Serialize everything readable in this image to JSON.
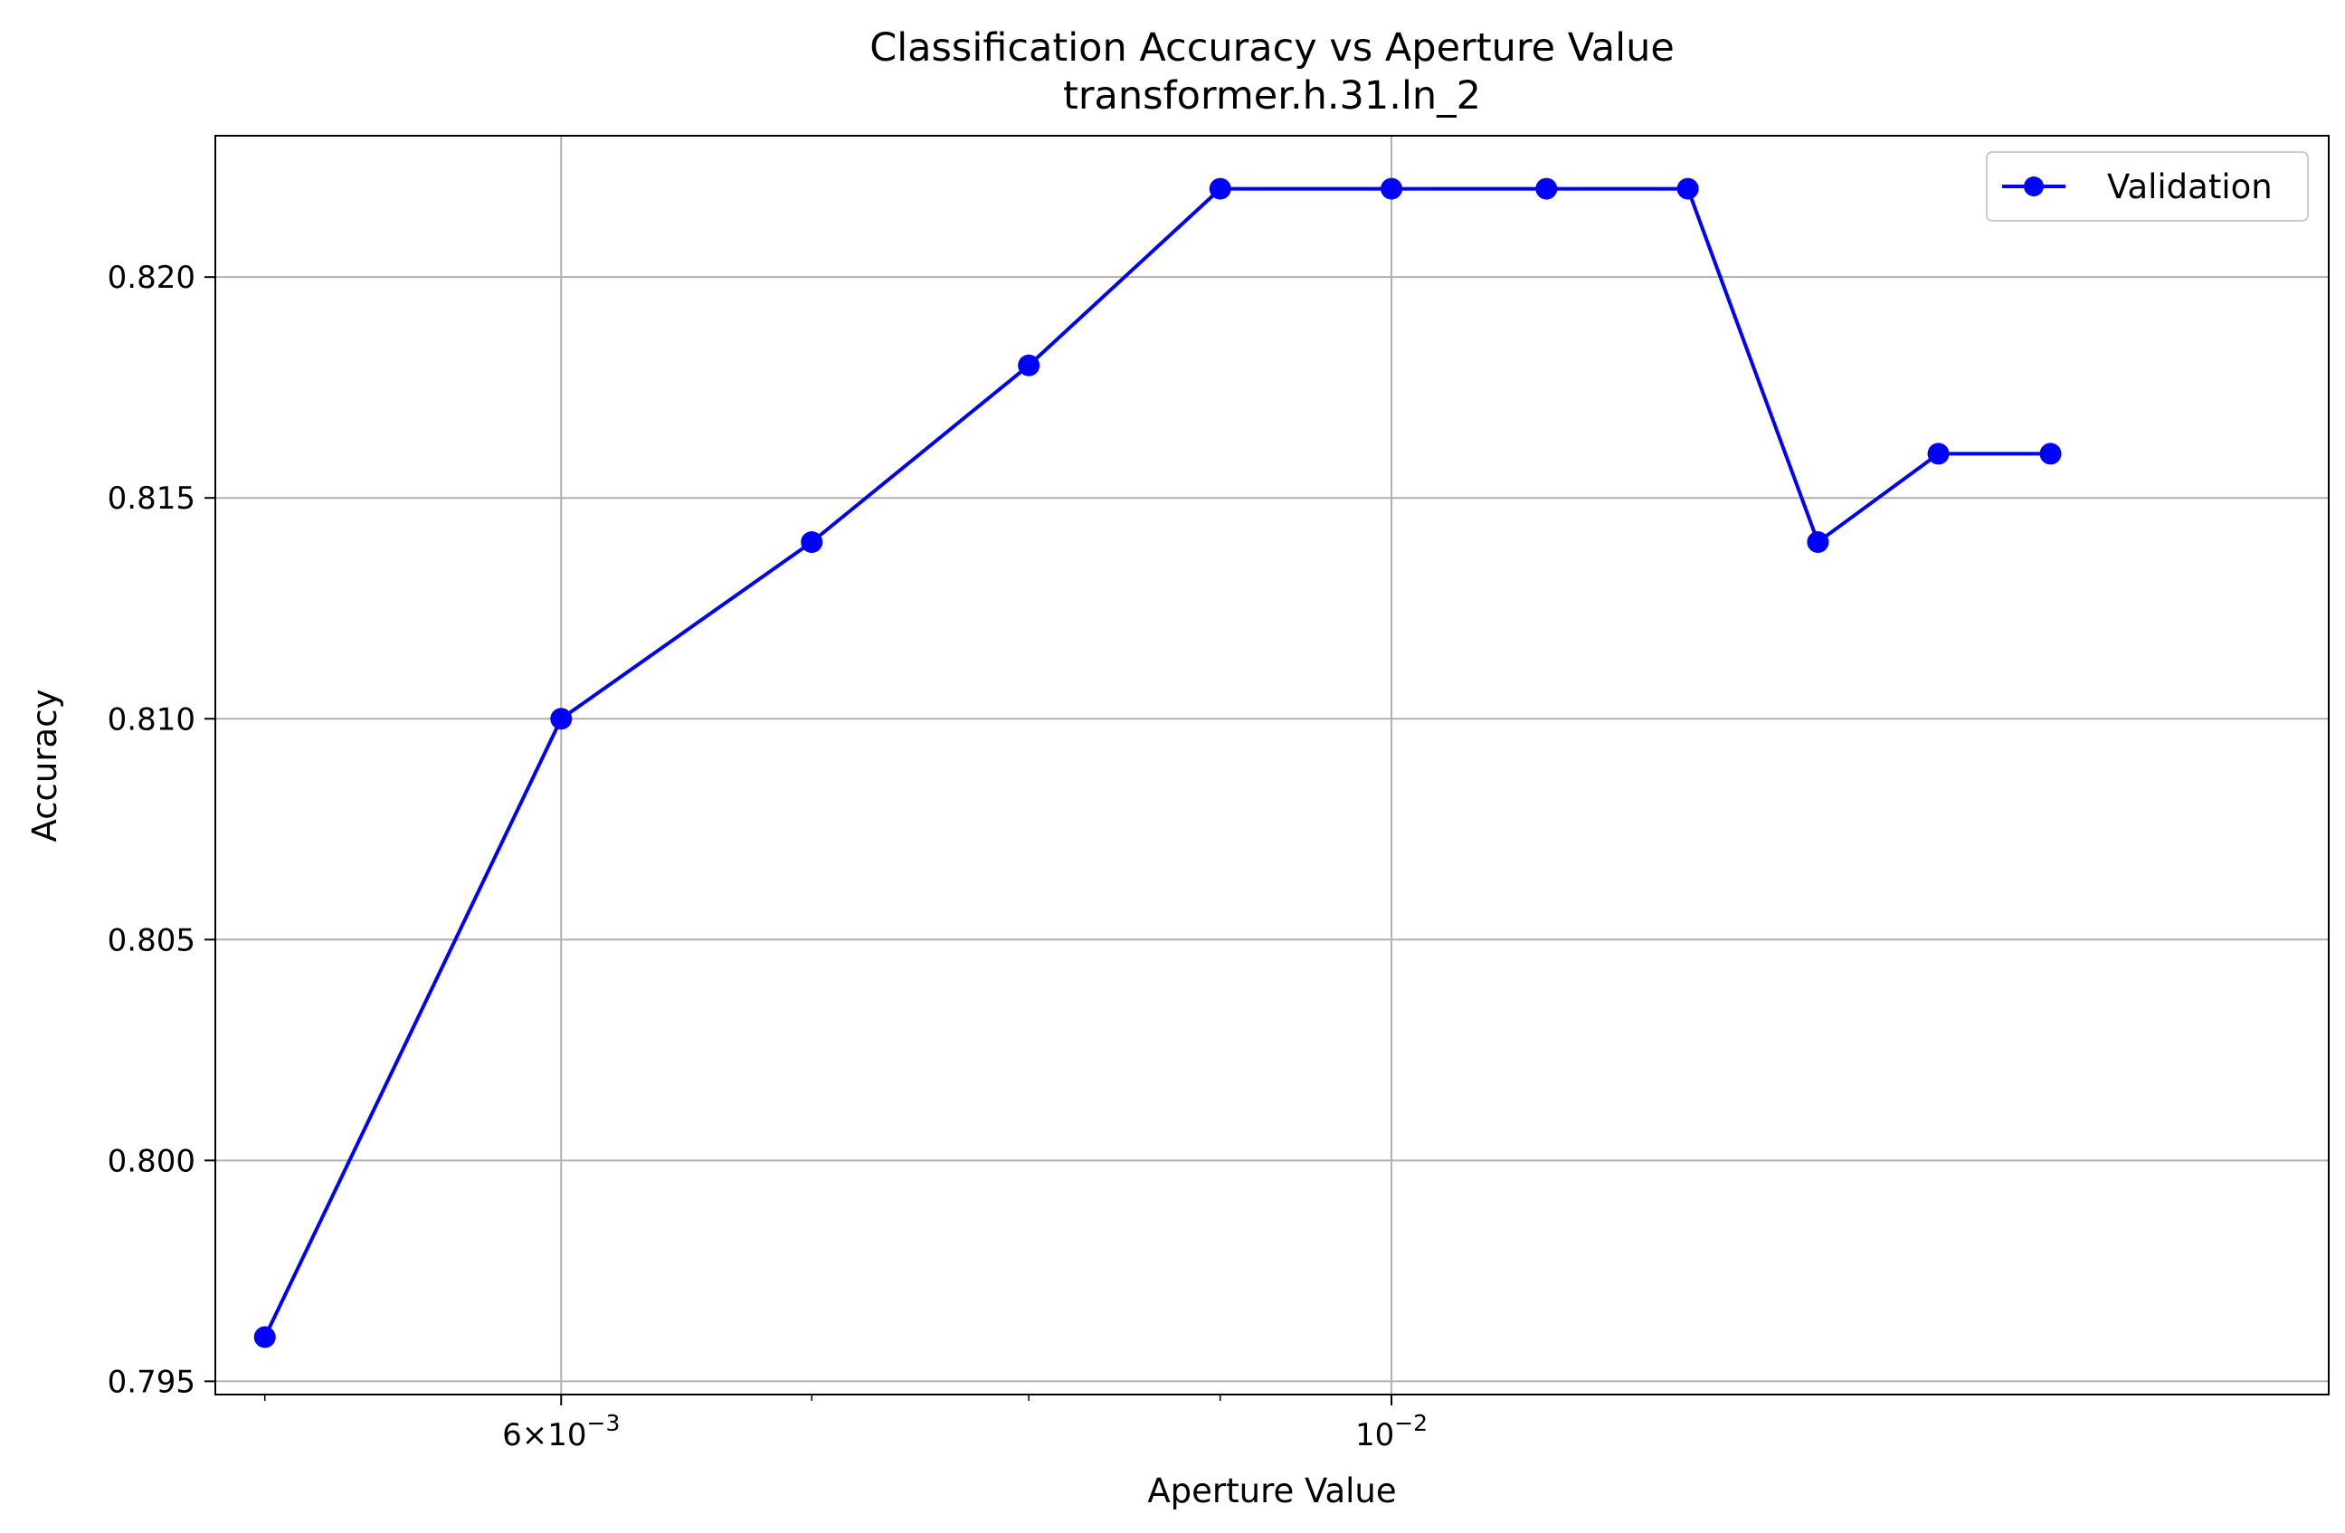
{
  "chart_data": {
    "type": "line",
    "title": "Classification Accuracy vs Aperture Value",
    "subtitle": "transformer.h.31.ln_2",
    "xlabel": "Aperture Value",
    "ylabel": "Accuracy",
    "xscale": "log",
    "xlim": [
      0.00485,
      0.0178
    ],
    "ylim": [
      0.7947,
      0.8232
    ],
    "x_ticks": [
      {
        "value": 0.006,
        "label": "6×10",
        "exp": "−3"
      },
      {
        "value": 0.01,
        "label": "10",
        "exp": "−2"
      }
    ],
    "x_minor_ticks": [
      0.005,
      0.007,
      0.008,
      0.009,
      0.02
    ],
    "y_ticks": [
      0.795,
      0.8,
      0.805,
      0.81,
      0.815,
      0.82
    ],
    "y_tick_labels": [
      "0.795",
      "0.800",
      "0.805",
      "0.810",
      "0.815",
      "0.820"
    ],
    "grid": true,
    "legend_position": "top-right",
    "series": [
      {
        "name": "Validation",
        "color": "#0000ff",
        "marker": "circle",
        "x": [
          0.005,
          0.006,
          0.007,
          0.008,
          0.009,
          0.01,
          0.011,
          0.012,
          0.013,
          0.014,
          0.015
        ],
        "y": [
          0.796,
          0.81,
          0.814,
          0.818,
          0.822,
          0.822,
          0.822,
          0.822,
          0.814,
          0.816,
          0.816
        ]
      }
    ]
  }
}
